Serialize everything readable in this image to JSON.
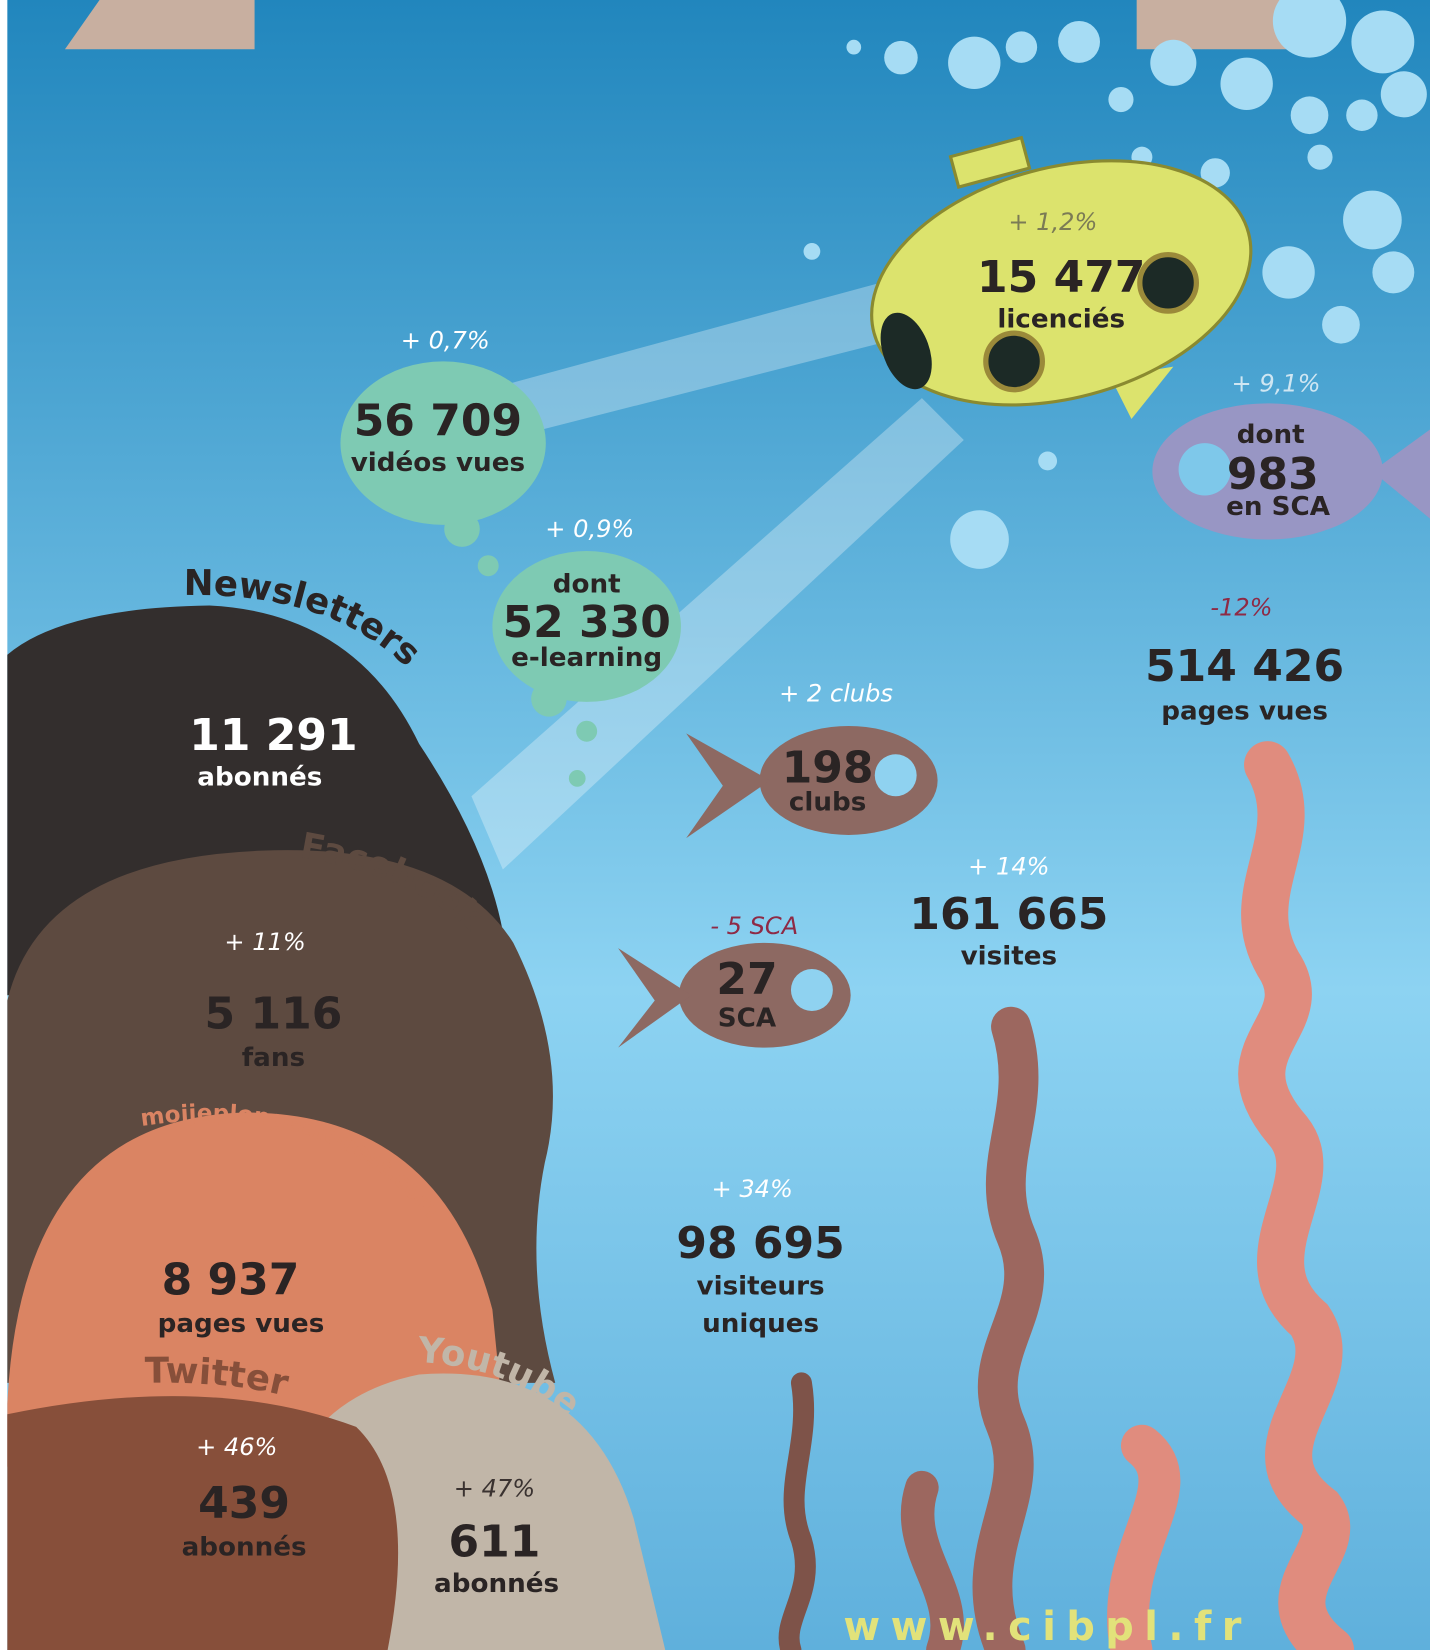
{
  "url": "www.cibpl.fr",
  "labels": {
    "newsletters": "Newsletters",
    "facebook": "Facebook",
    "site": "moijeplongealouest.com",
    "twitter": "Twitter",
    "youtube": "Youtube"
  },
  "licencies": {
    "change": "+ 1,2%",
    "value": "15 477",
    "unit": "licenciés"
  },
  "licencies_sca": {
    "change": "+ 9,1%",
    "prefix": "dont",
    "value": "983",
    "unit": "en SCA"
  },
  "videos": {
    "change": "+ 0,7%",
    "value": "56 709",
    "unit": "vidéos vues"
  },
  "elearning": {
    "change": "+ 0,9%",
    "prefix": "dont",
    "value": "52 330",
    "unit": "e-learning"
  },
  "clubs": {
    "change": "+ 2 clubs",
    "value": "198",
    "unit": "clubs"
  },
  "sca": {
    "change": "- 5 SCA",
    "value": "27",
    "unit": "SCA"
  },
  "pages_vues": {
    "change": "-12%",
    "value": "514 426",
    "unit": "pages vues"
  },
  "visites": {
    "change": "+ 14%",
    "value": "161 665",
    "unit": "visites"
  },
  "visiteurs": {
    "change": "+ 34%",
    "value": "98 695",
    "unit": [
      "visiteurs",
      "uniques"
    ]
  },
  "newsletters": {
    "value": "11 291",
    "unit": "abonnés"
  },
  "facebook": {
    "change": "+ 11%",
    "value": "5 116",
    "unit": "fans"
  },
  "site": {
    "value": "8 937",
    "unit": "pages vues"
  },
  "twitter": {
    "change": "+ 46%",
    "value": "439",
    "unit": "abonnés"
  },
  "youtube": {
    "change": "+ 47%",
    "value": "611",
    "unit": "abonnés"
  }
}
